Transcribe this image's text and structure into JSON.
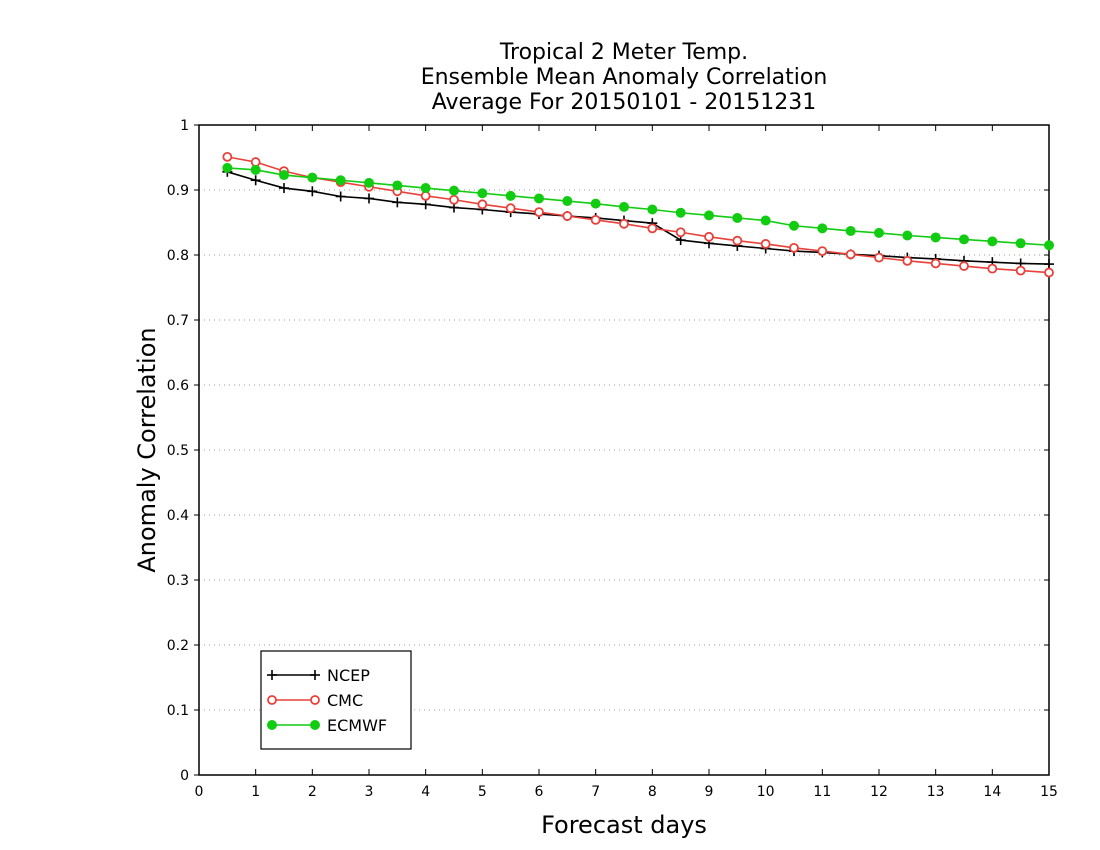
{
  "chart_data": {
    "type": "line",
    "title_lines": [
      "Tropical 2 Meter Temp.",
      "Ensemble Mean Anomaly Correlation",
      "Average For 20150101 - 20151231"
    ],
    "xlabel": "Forecast days",
    "ylabel": "Anomaly Correlation",
    "xlim": [
      0,
      15
    ],
    "ylim": [
      0,
      1
    ],
    "xticks": [
      "0",
      "1",
      "2",
      "3",
      "4",
      "5",
      "6",
      "7",
      "8",
      "9",
      "10",
      "11",
      "12",
      "13",
      "14",
      "15"
    ],
    "yticks": [
      "0",
      "0.1",
      "0.2",
      "0.3",
      "0.4",
      "0.5",
      "0.6",
      "0.7",
      "0.8",
      "0.9",
      "1"
    ],
    "grid": "horizontal dotted",
    "legend_position": "bottom-left",
    "x": [
      0.5,
      1,
      1.5,
      2,
      2.5,
      3,
      3.5,
      4,
      4.5,
      5,
      5.5,
      6,
      6.5,
      7,
      7.5,
      8,
      8.5,
      9,
      9.5,
      10,
      10.5,
      11,
      11.5,
      12,
      12.5,
      13,
      13.5,
      14,
      14.5,
      15
    ],
    "series": [
      {
        "name": "NCEP",
        "color": "#000000",
        "marker": "plus",
        "values": [
          0.928,
          0.915,
          0.903,
          0.898,
          0.89,
          0.887,
          0.881,
          0.878,
          0.873,
          0.87,
          0.866,
          0.863,
          0.86,
          0.857,
          0.853,
          0.849,
          0.823,
          0.818,
          0.814,
          0.81,
          0.806,
          0.804,
          0.801,
          0.799,
          0.796,
          0.794,
          0.791,
          0.789,
          0.787,
          0.786
        ]
      },
      {
        "name": "CMC",
        "color": "#e8413a",
        "marker": "open-circle",
        "values": [
          0.951,
          0.943,
          0.929,
          0.919,
          0.912,
          0.905,
          0.898,
          0.891,
          0.885,
          0.878,
          0.872,
          0.866,
          0.86,
          0.854,
          0.848,
          0.841,
          0.835,
          0.828,
          0.822,
          0.817,
          0.811,
          0.806,
          0.801,
          0.796,
          0.791,
          0.787,
          0.783,
          0.779,
          0.776,
          0.773
        ]
      },
      {
        "name": "ECMWF",
        "color": "#11cc11",
        "marker": "filled-circle",
        "values": [
          0.934,
          0.931,
          0.923,
          0.919,
          0.915,
          0.911,
          0.907,
          0.903,
          0.899,
          0.895,
          0.891,
          0.887,
          0.883,
          0.879,
          0.874,
          0.87,
          0.865,
          0.861,
          0.857,
          0.853,
          0.845,
          0.841,
          0.837,
          0.834,
          0.83,
          0.827,
          0.824,
          0.821,
          0.818,
          0.815
        ]
      }
    ]
  }
}
